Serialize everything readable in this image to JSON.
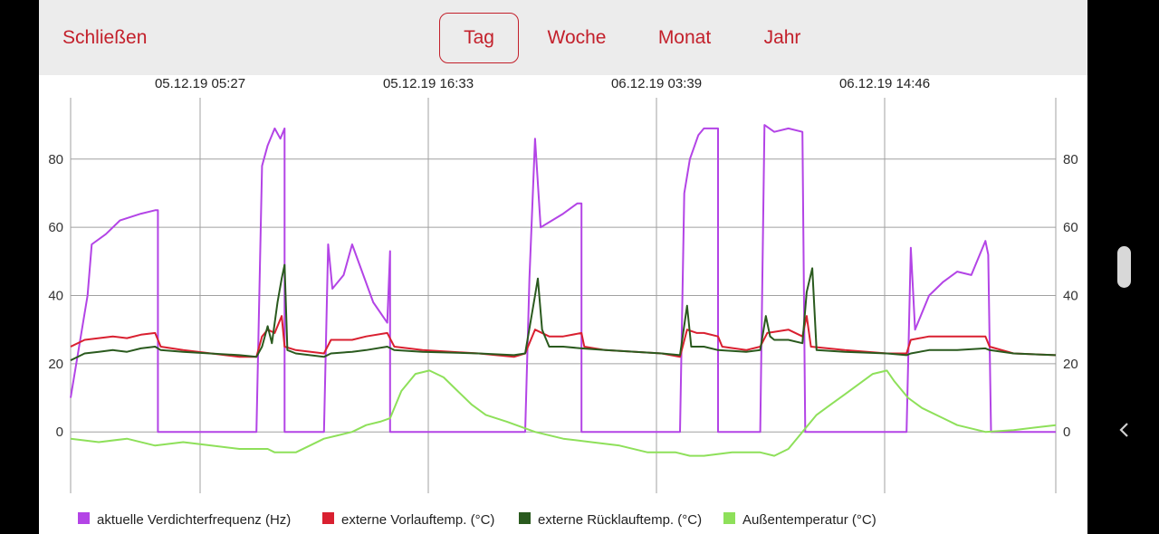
{
  "toolbar": {
    "close_label": "Schließen",
    "tabs": [
      {
        "label": "Tag",
        "selected": true
      },
      {
        "label": "Woche",
        "selected": false
      },
      {
        "label": "Monat",
        "selected": false
      },
      {
        "label": "Jahr",
        "selected": false
      }
    ]
  },
  "colors": {
    "accent": "#c3202b",
    "toolbar_bg": "#ececec",
    "grid": "#a0a0a0"
  },
  "icons": {
    "nav_back": "chevron-left-icon",
    "scroll": "scroll-handle"
  },
  "chart_data": {
    "type": "line",
    "x_tick_labels": [
      "05.12.19 05:27",
      "05.12.19 16:33",
      "06.12.19 03:39",
      "06.12.19 14:46"
    ],
    "y_ticks": [
      0,
      20,
      40,
      60,
      80
    ],
    "ylim": [
      -18,
      98
    ],
    "grid": true,
    "legend_position": "bottom",
    "series": [
      {
        "name": "aktuelle Verdichterfrequenz (Hz)",
        "color": "#b344e6",
        "points": [
          [
            0,
            10
          ],
          [
            1.2,
            40
          ],
          [
            1.5,
            55
          ],
          [
            2.5,
            58
          ],
          [
            3.5,
            62
          ],
          [
            5,
            64
          ],
          [
            6,
            65
          ],
          [
            6.2,
            65
          ],
          [
            6.2,
            0
          ],
          [
            13.2,
            0
          ],
          [
            13.6,
            78
          ],
          [
            14,
            84
          ],
          [
            14.5,
            89
          ],
          [
            14.9,
            86
          ],
          [
            15.2,
            89
          ],
          [
            15.2,
            0
          ],
          [
            18,
            0
          ],
          [
            18.3,
            55
          ],
          [
            18.6,
            42
          ],
          [
            19.4,
            46
          ],
          [
            20,
            55
          ],
          [
            21.5,
            38
          ],
          [
            22.5,
            32
          ],
          [
            22.7,
            53
          ],
          [
            22.7,
            0
          ],
          [
            32.3,
            0
          ],
          [
            32.6,
            45
          ],
          [
            33,
            86
          ],
          [
            33.4,
            60
          ],
          [
            34.2,
            62
          ],
          [
            35,
            64
          ],
          [
            36,
            67
          ],
          [
            36.3,
            67
          ],
          [
            36.3,
            0
          ],
          [
            43.3,
            0
          ],
          [
            43.6,
            70
          ],
          [
            44,
            80
          ],
          [
            44.6,
            87
          ],
          [
            45,
            89
          ],
          [
            46,
            89
          ],
          [
            46,
            0
          ],
          [
            49,
            0
          ],
          [
            49.3,
            90
          ],
          [
            50,
            88
          ],
          [
            51,
            89
          ],
          [
            52,
            88
          ],
          [
            52.2,
            0
          ],
          [
            59.4,
            0
          ],
          [
            59.7,
            54
          ],
          [
            60,
            30
          ],
          [
            61,
            40
          ],
          [
            62,
            44
          ],
          [
            63,
            47
          ],
          [
            64,
            46
          ],
          [
            65,
            56
          ],
          [
            65.2,
            52
          ],
          [
            65.4,
            0
          ],
          [
            70,
            0
          ]
        ]
      },
      {
        "name": "externe Vorlauftemp. (°C)",
        "color": "#d92030",
        "points": [
          [
            0,
            25
          ],
          [
            1,
            27
          ],
          [
            2,
            27.5
          ],
          [
            3,
            28
          ],
          [
            4,
            27.5
          ],
          [
            5,
            28.5
          ],
          [
            6,
            29
          ],
          [
            6.4,
            25
          ],
          [
            8,
            24
          ],
          [
            12,
            22
          ],
          [
            13.2,
            22
          ],
          [
            13.6,
            28
          ],
          [
            14,
            30
          ],
          [
            14.5,
            29
          ],
          [
            15,
            34
          ],
          [
            15.2,
            25
          ],
          [
            16,
            24
          ],
          [
            18,
            23
          ],
          [
            18.5,
            27
          ],
          [
            20,
            27
          ],
          [
            21,
            28
          ],
          [
            22.5,
            29
          ],
          [
            23,
            25
          ],
          [
            25,
            24
          ],
          [
            29,
            23
          ],
          [
            31.5,
            22
          ],
          [
            32.3,
            23
          ],
          [
            33,
            30
          ],
          [
            34,
            28
          ],
          [
            35,
            28
          ],
          [
            36.3,
            29
          ],
          [
            36.5,
            25
          ],
          [
            38,
            24
          ],
          [
            42,
            23
          ],
          [
            43.3,
            22
          ],
          [
            43.8,
            30
          ],
          [
            44.5,
            29
          ],
          [
            45,
            29
          ],
          [
            46,
            28
          ],
          [
            46.3,
            25
          ],
          [
            48,
            24
          ],
          [
            49,
            25
          ],
          [
            49.5,
            29
          ],
          [
            51,
            30
          ],
          [
            52,
            28
          ],
          [
            52.3,
            34
          ],
          [
            52.6,
            25
          ],
          [
            55,
            24
          ],
          [
            58,
            23
          ],
          [
            59.4,
            23
          ],
          [
            59.7,
            27
          ],
          [
            61,
            28
          ],
          [
            63,
            28
          ],
          [
            65,
            28
          ],
          [
            65.3,
            25
          ],
          [
            67,
            23
          ],
          [
            70,
            22.5
          ]
        ]
      },
      {
        "name": "externe Rücklauftemp. (°C)",
        "color": "#2a5a1e",
        "points": [
          [
            0,
            21
          ],
          [
            1,
            23
          ],
          [
            2,
            23.5
          ],
          [
            3,
            24
          ],
          [
            4,
            23.5
          ],
          [
            5,
            24.5
          ],
          [
            6,
            25
          ],
          [
            6.4,
            24
          ],
          [
            8,
            23.5
          ],
          [
            12,
            22.5
          ],
          [
            13.2,
            22
          ],
          [
            13.6,
            25
          ],
          [
            14,
            31
          ],
          [
            14.3,
            26
          ],
          [
            14.7,
            38
          ],
          [
            15,
            45
          ],
          [
            15.2,
            49
          ],
          [
            15.4,
            24
          ],
          [
            16,
            23
          ],
          [
            18,
            22
          ],
          [
            18.5,
            23
          ],
          [
            20,
            23.5
          ],
          [
            21,
            24
          ],
          [
            22.5,
            25
          ],
          [
            23,
            24
          ],
          [
            25,
            23.5
          ],
          [
            29,
            23
          ],
          [
            31.5,
            22.5
          ],
          [
            32.3,
            23
          ],
          [
            33,
            40
          ],
          [
            33.2,
            45
          ],
          [
            33.5,
            30
          ],
          [
            34,
            25
          ],
          [
            35,
            25
          ],
          [
            36.3,
            24.5
          ],
          [
            38,
            24
          ],
          [
            42,
            23
          ],
          [
            43.3,
            22.5
          ],
          [
            43.8,
            37
          ],
          [
            44.1,
            25
          ],
          [
            45,
            25
          ],
          [
            46,
            24
          ],
          [
            48,
            23.5
          ],
          [
            49,
            24
          ],
          [
            49.4,
            34
          ],
          [
            49.7,
            28
          ],
          [
            50,
            27
          ],
          [
            51,
            27
          ],
          [
            52,
            26
          ],
          [
            52.3,
            41
          ],
          [
            52.7,
            48
          ],
          [
            53,
            24
          ],
          [
            55,
            23.5
          ],
          [
            58,
            23
          ],
          [
            59.4,
            22.5
          ],
          [
            59.7,
            23
          ],
          [
            61,
            24
          ],
          [
            63,
            24
          ],
          [
            65,
            24.5
          ],
          [
            65.3,
            24
          ],
          [
            67,
            23
          ],
          [
            70,
            22.5
          ]
        ]
      },
      {
        "name": "Außentemperatur (°C)",
        "color": "#8ee05a",
        "points": [
          [
            0,
            -2
          ],
          [
            2,
            -3
          ],
          [
            4,
            -2
          ],
          [
            6,
            -4
          ],
          [
            8,
            -3
          ],
          [
            10,
            -4
          ],
          [
            12,
            -5
          ],
          [
            14,
            -5
          ],
          [
            14.5,
            -6
          ],
          [
            16,
            -6
          ],
          [
            17,
            -4
          ],
          [
            18,
            -2
          ],
          [
            19,
            -1
          ],
          [
            20,
            0
          ],
          [
            21,
            2
          ],
          [
            22,
            3
          ],
          [
            22.7,
            4
          ],
          [
            23.5,
            12
          ],
          [
            24.5,
            17
          ],
          [
            25.5,
            18
          ],
          [
            26.5,
            16
          ],
          [
            27.5,
            12
          ],
          [
            28.5,
            8
          ],
          [
            29.5,
            5
          ],
          [
            31,
            3
          ],
          [
            33,
            0
          ],
          [
            35,
            -2
          ],
          [
            37,
            -3
          ],
          [
            39,
            -4
          ],
          [
            41,
            -6
          ],
          [
            43,
            -6
          ],
          [
            44,
            -7
          ],
          [
            45,
            -7
          ],
          [
            47,
            -6
          ],
          [
            49,
            -6
          ],
          [
            50,
            -7
          ],
          [
            51,
            -5
          ],
          [
            52,
            0
          ],
          [
            53,
            5
          ],
          [
            54,
            8
          ],
          [
            55,
            11
          ],
          [
            56,
            14
          ],
          [
            57,
            17
          ],
          [
            58,
            18
          ],
          [
            58.5,
            15
          ],
          [
            59.5,
            10
          ],
          [
            60.5,
            7
          ],
          [
            62,
            4
          ],
          [
            63,
            2
          ],
          [
            65,
            0
          ],
          [
            67,
            0.5
          ],
          [
            69,
            1.5
          ],
          [
            70,
            2
          ]
        ]
      }
    ]
  }
}
